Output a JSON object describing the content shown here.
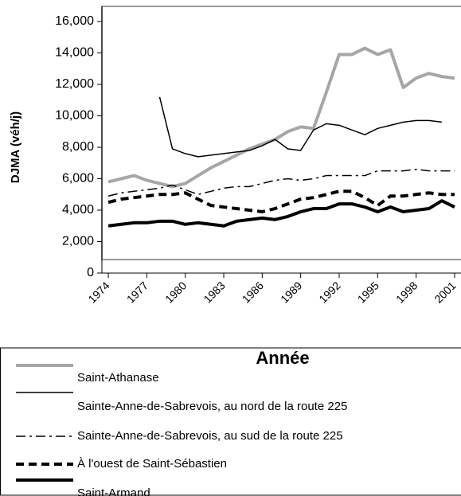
{
  "chart_data": {
    "type": "line",
    "x_label": "Année",
    "y_label": "DJMA (véh/j)",
    "x": [
      1974,
      1975,
      1976,
      1977,
      1978,
      1979,
      1980,
      1981,
      1982,
      1983,
      1984,
      1985,
      1986,
      1987,
      1988,
      1989,
      1990,
      1991,
      1992,
      1993,
      1994,
      1995,
      1996,
      1997,
      1998,
      1999,
      2000,
      2001
    ],
    "xlim": [
      1973.5,
      2001.5
    ],
    "xticks": [
      1974,
      1977,
      1980,
      1983,
      1986,
      1989,
      1992,
      1995,
      1998,
      2001
    ],
    "ylim": [
      0,
      16000
    ],
    "yticks": [
      0,
      {
        "value": 2000,
        "label": "2,000"
      },
      {
        "value": 4000,
        "label": "4,000"
      },
      {
        "value": 6000,
        "label": "6,000"
      },
      {
        "value": 8000,
        "label": "8,000"
      },
      {
        "value": 10000,
        "label": "10,000"
      },
      {
        "value": 12000,
        "label": "12,000"
      },
      {
        "value": 14000,
        "label": "14,000"
      },
      {
        "value": 16000,
        "label": "16,000"
      }
    ],
    "series": [
      {
        "name": "Saint-Athanase",
        "color": "#a6a6a6",
        "width": 4,
        "dash": "solid",
        "values": [
          5800,
          6000,
          6200,
          5900,
          5700,
          5500,
          5700,
          6200,
          6700,
          7100,
          7500,
          7900,
          8200,
          8500,
          9000,
          9300,
          9200,
          11500,
          13900,
          13900,
          14300,
          13900,
          14200,
          11800,
          12400,
          12700,
          12500,
          12400
        ]
      },
      {
        "name": "Sainte-Anne-de-Sabrevois, au nord de la route 225",
        "color": "#000000",
        "width": 1.5,
        "dash": "solid",
        "values": [
          null,
          null,
          null,
          null,
          11200,
          7900,
          7600,
          7400,
          7500,
          7600,
          7700,
          7800,
          8100,
          8500,
          7900,
          7800,
          9100,
          9500,
          9400,
          9100,
          8800,
          9200,
          9400,
          9600,
          9700,
          9700,
          9600,
          null
        ]
      },
      {
        "name": "Sainte-Anne-de-Sabrevois, au sud de la route 225",
        "color": "#000000",
        "width": 1.5,
        "dash": "dashdot",
        "values": [
          4900,
          5100,
          5200,
          5300,
          5400,
          5600,
          5300,
          5000,
          5200,
          5400,
          5500,
          5500,
          5700,
          5900,
          6000,
          5900,
          6000,
          6200,
          6200,
          6200,
          6200,
          6500,
          6500,
          6500,
          6600,
          6500,
          6500,
          6500
        ]
      },
      {
        "name": "À l'ouest de Saint-Sébastien",
        "color": "#000000",
        "width": 4,
        "dash": "dash",
        "values": [
          4500,
          4700,
          4800,
          4900,
          5000,
          5000,
          5100,
          4700,
          4300,
          4200,
          4100,
          4000,
          3900,
          4100,
          4400,
          4700,
          4800,
          5000,
          5200,
          5200,
          4800,
          4300,
          4900,
          4900,
          5000,
          5100,
          5000,
          5000
        ]
      },
      {
        "name": "Saint-Armand",
        "color": "#000000",
        "width": 4,
        "dash": "solid",
        "values": [
          3000,
          3100,
          3200,
          3200,
          3300,
          3300,
          3100,
          3200,
          3100,
          3000,
          3300,
          3400,
          3500,
          3400,
          3600,
          3900,
          4100,
          4100,
          4400,
          4400,
          4200,
          3900,
          4200,
          3900,
          4000,
          4100,
          4600,
          4200
        ]
      }
    ]
  }
}
